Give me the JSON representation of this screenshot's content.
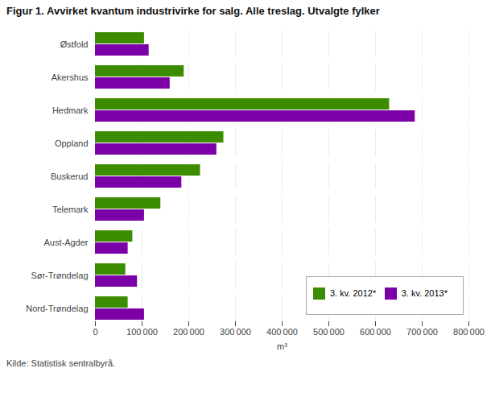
{
  "chart_data": {
    "type": "bar",
    "orientation": "horizontal",
    "title": "Figur 1. Avvirket kvantum industrivirke for salg. Alle treslag. Utvalgte fylker",
    "caption": "Kilde: Statistisk sentralbyrå.",
    "categories": [
      "Østfold",
      "Akershus",
      "Hedmark",
      "Oppland",
      "Buskerud",
      "Telemark",
      "Aust-Agder",
      "Sør-Trøndelag",
      "Nord-Trøndelag"
    ],
    "series": [
      {
        "name": "3. kv. 2012*",
        "color": "#3c8c00",
        "values": [
          105000,
          190000,
          630000,
          275000,
          225000,
          140000,
          80000,
          65000,
          70000
        ]
      },
      {
        "name": "3. kv. 2013*",
        "color": "#7b00a8",
        "values": [
          115000,
          160000,
          685000,
          260000,
          185000,
          105000,
          70000,
          90000,
          105000
        ]
      }
    ],
    "xlabel": "m³",
    "xlim": [
      0,
      800000
    ],
    "xticks": [
      0,
      {
        "value": 100000,
        "label": "100 000"
      },
      {
        "value": 200000,
        "label": "200 000"
      },
      {
        "value": 300000,
        "label": "300 000"
      },
      {
        "value": 400000,
        "label": "400 000"
      },
      {
        "value": 500000,
        "label": "500 000"
      },
      {
        "value": 600000,
        "label": "600 000"
      },
      {
        "value": 700000,
        "label": "700 000"
      },
      {
        "value": 800000,
        "label": "800 000"
      }
    ],
    "grid": true,
    "legend": "lower right"
  }
}
